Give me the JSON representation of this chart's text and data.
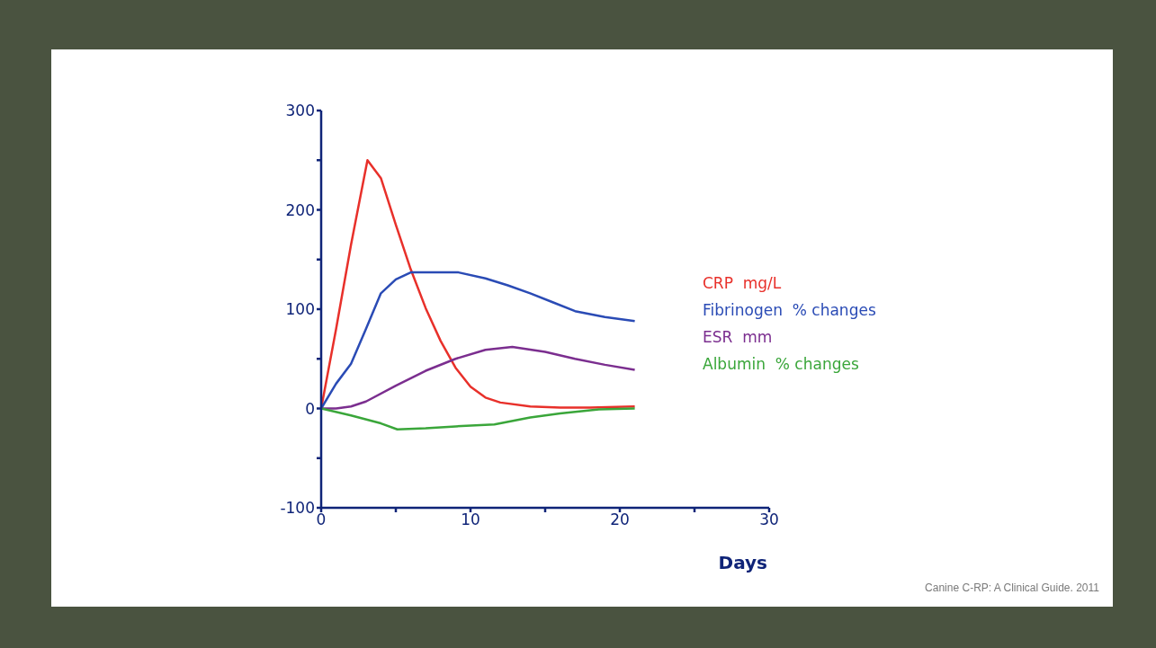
{
  "chart_data": {
    "type": "line",
    "xlabel": "Days",
    "xlim": [
      0,
      30
    ],
    "xticks": [
      0,
      {
        "value": 5,
        "label": null
      },
      10,
      {
        "value": 15,
        "label": null
      },
      20,
      {
        "value": 25,
        "label": null
      },
      30
    ],
    "ylim": [
      -100,
      300
    ],
    "yticks": [
      -100,
      {
        "value": -50,
        "label": null
      },
      0,
      {
        "value": 50,
        "label": null
      },
      100,
      {
        "value": 150,
        "label": null
      },
      200,
      {
        "value": 250,
        "label": null
      },
      300
    ],
    "legend": "right",
    "marker": "none",
    "series": [
      {
        "name": "CRP  mg/L",
        "color": "#e8302a",
        "x": [
          0,
          1,
          2,
          3.1,
          4,
          5,
          6,
          7,
          8,
          9,
          10,
          11,
          12,
          14,
          16,
          18,
          21
        ],
        "values": [
          0,
          80,
          165,
          250,
          232,
          185,
          140,
          101,
          68,
          41,
          22,
          11,
          6,
          2,
          1,
          1,
          2
        ]
      },
      {
        "name": "Fibrinogen  % changes",
        "color": "#2a4bb5",
        "x": [
          0,
          1,
          2,
          3,
          4,
          5,
          6,
          7,
          9.2,
          11,
          12.5,
          14,
          15.5,
          17,
          19,
          21
        ],
        "values": [
          0,
          25,
          45,
          80,
          116,
          130,
          137,
          137,
          137,
          131,
          124,
          116,
          107,
          98,
          92,
          88
        ]
      },
      {
        "name": "ESR  mm",
        "color": "#7b2e8f",
        "x": [
          0,
          1,
          2,
          3,
          5,
          7,
          9,
          11,
          12.8,
          15,
          17,
          19,
          21
        ],
        "values": [
          0,
          0,
          2,
          7,
          23,
          38,
          50,
          59,
          62,
          57,
          50,
          44,
          39
        ]
      },
      {
        "name": "Albumin  % changes",
        "color": "#3aa63a",
        "x": [
          0,
          2,
          4,
          5.1,
          7,
          9,
          11.6,
          14,
          16,
          18.6,
          21
        ],
        "values": [
          0,
          -7,
          -15,
          -21,
          -20,
          -18,
          -16,
          -9,
          -5,
          -1,
          0
        ]
      }
    ],
    "annotations": [
      "Canine C-RP: A Clinical Guide. 2011"
    ]
  }
}
